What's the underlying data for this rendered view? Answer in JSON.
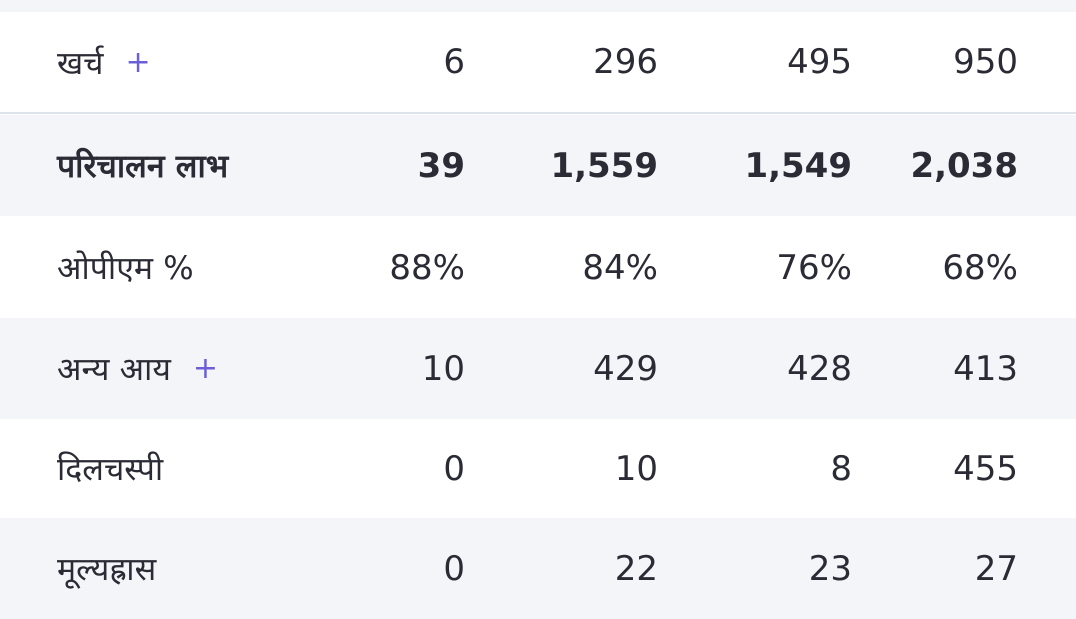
{
  "table": {
    "rows": [
      {
        "label": "खर्च",
        "expand": "+",
        "values": [
          "6",
          "296",
          "495",
          "950"
        ]
      },
      {
        "label": "परिचालन लाभ",
        "bold": true,
        "values": [
          "39",
          "1,559",
          "1,549",
          "2,038"
        ]
      },
      {
        "label": "ओपीएम %",
        "values": [
          "88%",
          "84%",
          "76%",
          "68%"
        ]
      },
      {
        "label": "अन्य आय",
        "expand": "+",
        "values": [
          "10",
          "429",
          "428",
          "413"
        ]
      },
      {
        "label": "दिलचस्पी",
        "values": [
          "0",
          "10",
          "8",
          "455"
        ]
      },
      {
        "label": "मूल्यह्रास",
        "values": [
          "0",
          "22",
          "23",
          "27"
        ]
      }
    ]
  }
}
